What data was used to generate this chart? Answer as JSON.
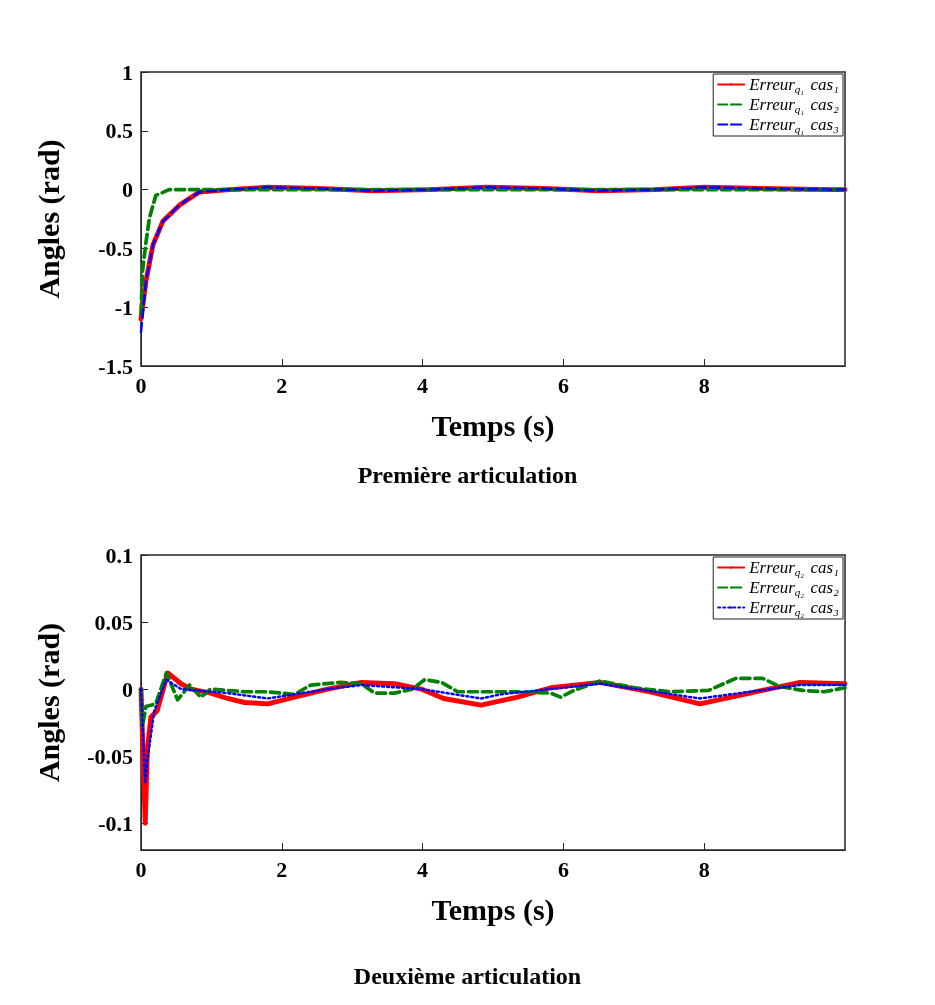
{
  "chart_data": [
    {
      "type": "line",
      "title": "Première articulation",
      "xlabel": "Temps (s)",
      "ylabel": "Angles (rad)",
      "xlim": [
        0,
        10
      ],
      "xticks": [
        0,
        2,
        4,
        6,
        8
      ],
      "ylim": [
        -1.5,
        1
      ],
      "yticks": [
        -1.5,
        -1,
        -0.5,
        0,
        0.5,
        1
      ],
      "grid": false,
      "legend": "top right",
      "marker": "none",
      "series": [
        {
          "name": "Erreur$_{q₁}$ cas₁",
          "color": "#ff0000",
          "line_style": "solid",
          "x": [
            0,
            0.07,
            0.17,
            0.31,
            0.55,
            0.83,
            1.26,
            1.8,
            2.5,
            3.3,
            4.1,
            4.9,
            5.7,
            6.5,
            7.3,
            8.0,
            8.8,
            9.8,
            10
          ],
          "values": [
            -1.1,
            -0.78,
            -0.47,
            -0.27,
            -0.13,
            -0.02,
            0.0,
            0.02,
            0.01,
            -0.01,
            0.0,
            0.02,
            0.01,
            -0.01,
            0.0,
            0.02,
            0.01,
            0.0,
            0.0
          ]
        },
        {
          "name": "Erreur$_{q₁}$ cas₂",
          "color": "#008000",
          "line_style": "dashed",
          "x": [
            0,
            0.02,
            0.07,
            0.12,
            0.21,
            0.4,
            1.0,
            2.0,
            3.0,
            4.0,
            5.0,
            6.0,
            7.0,
            8.0,
            9.0,
            10
          ],
          "values": [
            -1.05,
            -0.7,
            -0.45,
            -0.24,
            -0.05,
            0.0,
            0.0,
            0.0,
            0.0,
            0.0,
            0.0,
            0.0,
            0.0,
            0.0,
            0.0,
            0.0
          ]
        },
        {
          "name": "Erreur$_{q₁}$ cas₃",
          "color": "#0000ff",
          "line_style": "dashed",
          "x": [
            0,
            0.07,
            0.17,
            0.31,
            0.55,
            0.83,
            1.26,
            1.8,
            2.5,
            3.3,
            4.1,
            4.9,
            5.7,
            6.5,
            7.3,
            8.0,
            8.8,
            9.8,
            10
          ],
          "values": [
            -1.21,
            -0.78,
            -0.47,
            -0.27,
            -0.13,
            -0.02,
            0.0,
            0.02,
            0.01,
            -0.01,
            0.0,
            0.02,
            0.01,
            -0.01,
            0.0,
            0.02,
            0.01,
            0.0,
            0.0
          ]
        }
      ]
    },
    {
      "type": "line",
      "title": "Deuxième articulation",
      "xlabel": "Temps (s)",
      "ylabel": "Angles (rad)",
      "xlim": [
        0,
        10
      ],
      "xticks": [
        0,
        2,
        4,
        6,
        8
      ],
      "ylim": [
        -0.12,
        0.1
      ],
      "yticks": [
        -0.1,
        -0.05,
        0,
        0.05,
        0.1
      ],
      "grid": false,
      "legend": "top right",
      "marker": "none",
      "series": [
        {
          "name": "Erreur$_{q₂}$ cas₁",
          "color": "#ff0000",
          "line_style": "solid",
          "x": [
            0,
            0.06,
            0.09,
            0.14,
            0.23,
            0.38,
            0.57,
            0.71,
            0.99,
            1.23,
            1.47,
            1.8,
            2.18,
            2.65,
            3.13,
            3.6,
            3.98,
            4.3,
            4.83,
            5.35,
            5.82,
            6.52,
            7.23,
            7.94,
            8.65,
            9.36,
            10
          ],
          "values": [
            0,
            -0.1,
            -0.046,
            -0.021,
            -0.016,
            0.012,
            0.004,
            0,
            -0.003,
            -0.007,
            -0.01,
            -0.011,
            -0.006,
            0,
            0.005,
            0.004,
            0,
            -0.007,
            -0.012,
            -0.006,
            0.001,
            0.005,
            -0.002,
            -0.011,
            -0.003,
            0.005,
            0.004
          ]
        },
        {
          "name": "Erreur$_{q₂}$ cas₂",
          "color": "#008000",
          "line_style": "dashed",
          "x": [
            0,
            0.02,
            0.07,
            0.21,
            0.36,
            0.52,
            0.69,
            0.85,
            0.99,
            1.47,
            1.8,
            2.18,
            2.41,
            2.84,
            3.13,
            3.32,
            3.6,
            3.85,
            4.03,
            4.27,
            4.5,
            4.83,
            5.35,
            5.82,
            5.96,
            6.15,
            6.52,
            7.0,
            7.5,
            8.06,
            8.45,
            8.83,
            9.07,
            9.4,
            9.7,
            10
          ],
          "values": [
            0,
            -0.028,
            -0.013,
            -0.011,
            0.012,
            -0.008,
            0.003,
            -0.006,
            0,
            -0.002,
            -0.002,
            -0.004,
            0.003,
            0.005,
            0.004,
            -0.003,
            -0.003,
            0,
            0.007,
            0.005,
            -0.002,
            -0.002,
            -0.002,
            -0.003,
            -0.006,
            -0.001,
            0.006,
            0.001,
            -0.002,
            -0.001,
            0.008,
            0.008,
            0.002,
            -0.001,
            -0.002,
            0.001
          ]
        },
        {
          "name": "Erreur$_{q₂}$ cas₃",
          "color": "#0000ff",
          "line_style": "dotted",
          "x": [
            0,
            0.06,
            0.09,
            0.19,
            0.36,
            0.57,
            1.23,
            1.8,
            2.65,
            3.13,
            3.98,
            4.83,
            5.1,
            6.52,
            7.94,
            9.36,
            10
          ],
          "values": [
            0,
            -0.07,
            -0.053,
            -0.016,
            0.007,
            0,
            -0.003,
            -0.007,
            0,
            0.003,
            0,
            -0.007,
            -0.004,
            0.004,
            -0.007,
            0.003,
            0.003
          ]
        }
      ]
    }
  ]
}
